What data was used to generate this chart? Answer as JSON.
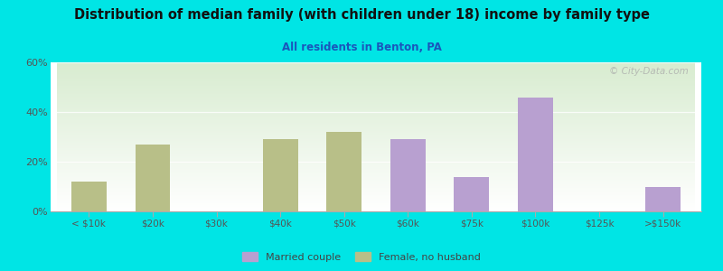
{
  "title": "Distribution of median family (with children under 18) income by family type",
  "subtitle": "All residents in Benton, PA",
  "categories": [
    "< $10k",
    "$20k",
    "$30k",
    "$40k",
    "$50k",
    "$60k",
    "$75k",
    "$100k",
    "$125k",
    ">$150k"
  ],
  "married_couple": [
    0,
    0,
    0,
    0,
    0,
    29,
    14,
    46,
    0,
    10
  ],
  "female_no_husband": [
    12,
    27,
    0,
    29,
    32,
    0,
    0,
    0,
    0,
    0
  ],
  "married_color": "#b8a0d0",
  "female_color": "#b8bf88",
  "ylim": [
    0,
    60
  ],
  "yticks": [
    0,
    20,
    40,
    60
  ],
  "ytick_labels": [
    "0%",
    "20%",
    "40%",
    "60%"
  ],
  "bg_outer": "#00e5e5",
  "bg_chart_topleft": "#d8ecd0",
  "bg_chart_bottomright": "#ffffff",
  "title_color": "#111111",
  "subtitle_color": "#1a55bb",
  "bar_width": 0.55,
  "watermark": "© City-Data.com"
}
